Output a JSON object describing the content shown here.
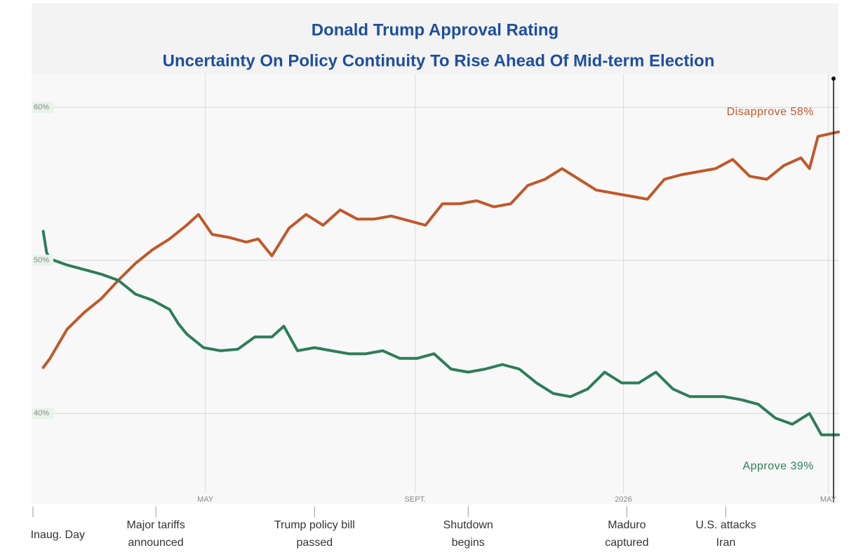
{
  "chart_data": {
    "type": "line",
    "title": "Donald Trump Approval Rating",
    "subtitle": "Uncertainty On Policy Continuity To Rise Ahead Of Mid-term Election",
    "xlim": [
      0,
      472
    ],
    "ylim": [
      34.1,
      62.2
    ],
    "xticks": [
      {
        "value": 101,
        "label": "MAY"
      },
      {
        "value": 224,
        "label": "SEPT."
      },
      {
        "value": 346,
        "label": "2026"
      },
      {
        "value": 466,
        "label": "MAY"
      }
    ],
    "yticks": [
      {
        "value": 40,
        "label": "40%"
      },
      {
        "value": 50,
        "label": "50%"
      },
      {
        "value": 60,
        "label": "60%"
      }
    ],
    "grid": true,
    "series": [
      {
        "label": "Disapprove 58%",
        "color": "#c0582a",
        "x": [
          6,
          10,
          20,
          30,
          40,
          50,
          60,
          70,
          80,
          90,
          97,
          105,
          115,
          125,
          132,
          140,
          150,
          160,
          170,
          180,
          190,
          200,
          210,
          220,
          230,
          240,
          250,
          260,
          270,
          280,
          290,
          300,
          310,
          320,
          330,
          340,
          350,
          360,
          370,
          380,
          390,
          400,
          410,
          420,
          430,
          440,
          450,
          455,
          460,
          472
        ],
        "values": [
          43.0,
          43.6,
          45.5,
          46.6,
          47.5,
          48.7,
          49.8,
          50.7,
          51.4,
          52.3,
          53.0,
          51.7,
          51.5,
          51.2,
          51.4,
          50.3,
          52.1,
          53.0,
          52.3,
          53.3,
          52.7,
          52.7,
          52.9,
          52.6,
          52.3,
          53.7,
          53.7,
          53.9,
          53.5,
          53.7,
          54.9,
          55.3,
          56.0,
          55.3,
          54.6,
          54.4,
          54.2,
          54.0,
          55.3,
          55.6,
          55.8,
          56.0,
          56.6,
          55.5,
          55.3,
          56.2,
          56.7,
          56.0,
          58.1,
          58.4
        ]
      },
      {
        "label": "Approve 39%",
        "color": "#2e7d5a",
        "x": [
          6,
          8,
          10,
          20,
          30,
          40,
          50,
          60,
          70,
          80,
          85,
          90,
          100,
          110,
          120,
          130,
          140,
          147,
          155,
          165,
          175,
          185,
          195,
          205,
          215,
          225,
          235,
          245,
          255,
          265,
          275,
          285,
          295,
          305,
          315,
          325,
          335,
          345,
          355,
          365,
          375,
          385,
          395,
          405,
          415,
          425,
          435,
          445,
          455,
          462,
          472
        ],
        "values": [
          51.9,
          50.5,
          50.1,
          49.7,
          49.4,
          49.1,
          48.7,
          47.8,
          47.4,
          46.8,
          45.9,
          45.2,
          44.3,
          44.1,
          44.2,
          45.0,
          45.0,
          45.7,
          44.1,
          44.3,
          44.1,
          43.9,
          43.9,
          44.1,
          43.6,
          43.6,
          43.9,
          42.9,
          42.7,
          42.9,
          43.2,
          42.9,
          42.0,
          41.3,
          41.1,
          41.6,
          42.7,
          42.0,
          42.0,
          42.7,
          41.6,
          41.1,
          41.1,
          41.1,
          40.9,
          40.6,
          39.7,
          39.3,
          40.0,
          38.6,
          38.6
        ]
      }
    ],
    "events": [
      {
        "x": 0,
        "lines": [
          "Inaug. Day"
        ]
      },
      {
        "x": 72,
        "lines": [
          "Major tariffs",
          "announced"
        ]
      },
      {
        "x": 165,
        "lines": [
          "Trump policy bill",
          "passed"
        ]
      },
      {
        "x": 255,
        "lines": [
          "Shutdown",
          "begins"
        ]
      },
      {
        "x": 348,
        "lines": [
          "Maduro",
          "captured"
        ]
      },
      {
        "x": 406,
        "lines": [
          "U.S. attacks",
          "Iran"
        ]
      }
    ]
  }
}
